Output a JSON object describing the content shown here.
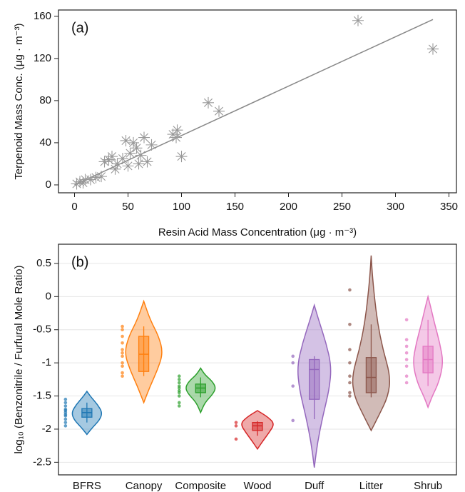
{
  "chart_data": [
    {
      "type": "scatter",
      "annotation": "(a)",
      "x_label": "Resin Acid Mass Concentration (μg · m⁻³)",
      "y_label": "Terpenoid Mass Conc. (μg · m⁻³)",
      "color": "#999999",
      "x": [
        2,
        5,
        8,
        10,
        15,
        20,
        25,
        28,
        32,
        35,
        38,
        40,
        45,
        48,
        50,
        52,
        55,
        58,
        60,
        62,
        65,
        68,
        72,
        92,
        95,
        96,
        100,
        125,
        135,
        265,
        335
      ],
      "values": [
        1,
        3,
        2,
        5,
        5,
        7,
        8,
        22,
        24,
        27,
        15,
        20,
        25,
        42,
        18,
        30,
        40,
        35,
        20,
        28,
        45,
        22,
        38,
        48,
        45,
        52,
        27,
        78,
        70,
        156,
        129
      ],
      "fit": {
        "x": [
          0,
          335
        ],
        "y": [
          0,
          157
        ],
        "color": "#888888"
      },
      "xlim": [
        -15,
        357
      ],
      "xticks": [
        0,
        50,
        100,
        150,
        200,
        250,
        300,
        350
      ],
      "ylim": [
        -7.5,
        166
      ],
      "yticks": [
        0,
        40,
        80,
        120,
        160
      ]
    },
    {
      "type": "violin",
      "annotation": "(b)",
      "y_label": "log₁₀ (Benzonitrile / Furfural Mole Ratio)",
      "grid": true,
      "ylim": [
        -2.69,
        0.79
      ],
      "yticks": [
        0.5,
        0,
        -0.5,
        -1,
        -1.5,
        -2,
        -2.5
      ],
      "categories": [
        "BFRS",
        "Canopy",
        "Composite",
        "Wood",
        "Duff",
        "Litter",
        "Shrub"
      ],
      "groups": [
        {
          "color": "#1f77b4",
          "density_y": [
            -2.08,
            -1.98,
            -1.86,
            -1.75,
            -1.63,
            -1.52,
            -1.43
          ],
          "density": [
            0,
            0.25,
            0.6,
            0.72,
            0.5,
            0.2,
            0
          ],
          "q1": -1.82,
          "median": -1.75,
          "q3": -1.69,
          "whisker_low": -1.9,
          "whisker_high": -1.6,
          "points": [
            -1.55,
            -1.6,
            -1.65,
            -1.7,
            -1.72,
            -1.75,
            -1.78,
            -1.8,
            -1.85,
            -1.9,
            -1.95
          ]
        },
        {
          "color": "#ff7f0e",
          "density_y": [
            -1.6,
            -1.35,
            -1.1,
            -0.85,
            -0.6,
            -0.35,
            -0.07
          ],
          "density": [
            0,
            0.3,
            0.65,
            0.9,
            0.7,
            0.3,
            0
          ],
          "q1": -1.13,
          "median": -0.87,
          "q3": -0.6,
          "whisker_low": -1.2,
          "whisker_high": -0.45,
          "points": [
            -0.45,
            -0.5,
            -0.6,
            -0.7,
            -0.8,
            -0.85,
            -0.9,
            -1.0,
            -1.05,
            -1.15,
            -1.2
          ]
        },
        {
          "color": "#2ca02c",
          "density_y": [
            -1.75,
            -1.6,
            -1.48,
            -1.38,
            -1.28,
            -1.18,
            -1.08
          ],
          "density": [
            0,
            0.2,
            0.55,
            0.72,
            0.55,
            0.2,
            0
          ],
          "q1": -1.45,
          "median": -1.38,
          "q3": -1.32,
          "whisker_low": -1.52,
          "whisker_high": -1.22,
          "points": [
            -1.2,
            -1.25,
            -1.3,
            -1.35,
            -1.38,
            -1.42,
            -1.45,
            -1.5,
            -1.6,
            -1.65
          ]
        },
        {
          "color": "#d62728",
          "density_y": [
            -2.3,
            -2.18,
            -2.05,
            -1.92,
            -1.82,
            -1.72
          ],
          "density": [
            0,
            0.25,
            0.55,
            0.8,
            0.5,
            0
          ],
          "q1": -2.02,
          "median": -1.95,
          "q3": -1.9,
          "whisker_low": -2.1,
          "whisker_high": -1.88,
          "points": [
            -1.9,
            -1.95,
            -2.15
          ]
        },
        {
          "color": "#9467bd",
          "density_y": [
            -2.58,
            -2.2,
            -1.8,
            -1.4,
            -1.05,
            -0.7,
            -0.35,
            -0.13
          ],
          "density": [
            0,
            0.15,
            0.4,
            0.7,
            0.8,
            0.55,
            0.2,
            0
          ],
          "q1": -1.55,
          "median": -1.1,
          "q3": -0.95,
          "whisker_low": -1.85,
          "whisker_high": -0.9,
          "points": [
            -0.9,
            -1.0,
            -1.35,
            -1.87
          ]
        },
        {
          "color": "#8c564b",
          "density_y": [
            -2.02,
            -1.8,
            -1.5,
            -1.2,
            -0.8,
            -0.4,
            0,
            0.35,
            0.62
          ],
          "density": [
            0,
            0.35,
            0.8,
            0.9,
            0.55,
            0.3,
            0.15,
            0.05,
            0
          ],
          "q1": -1.45,
          "median": -1.22,
          "q3": -0.92,
          "whisker_low": -1.52,
          "whisker_high": -0.42,
          "points": [
            0.1,
            -0.42,
            -0.8,
            -1.0,
            -1.2,
            -1.3,
            -1.45,
            -1.5
          ]
        },
        {
          "color": "#e377c2",
          "density_y": [
            -1.67,
            -1.5,
            -1.3,
            -1.0,
            -0.7,
            -0.4,
            -0.15,
            0
          ],
          "density": [
            0,
            0.2,
            0.5,
            0.72,
            0.55,
            0.3,
            0.12,
            0
          ],
          "q1": -1.15,
          "median": -0.95,
          "q3": -0.75,
          "whisker_low": -1.35,
          "whisker_high": -0.35,
          "points": [
            -0.35,
            -0.65,
            -0.75,
            -0.85,
            -0.95,
            -1.05,
            -1.2,
            -1.3
          ]
        }
      ]
    }
  ]
}
